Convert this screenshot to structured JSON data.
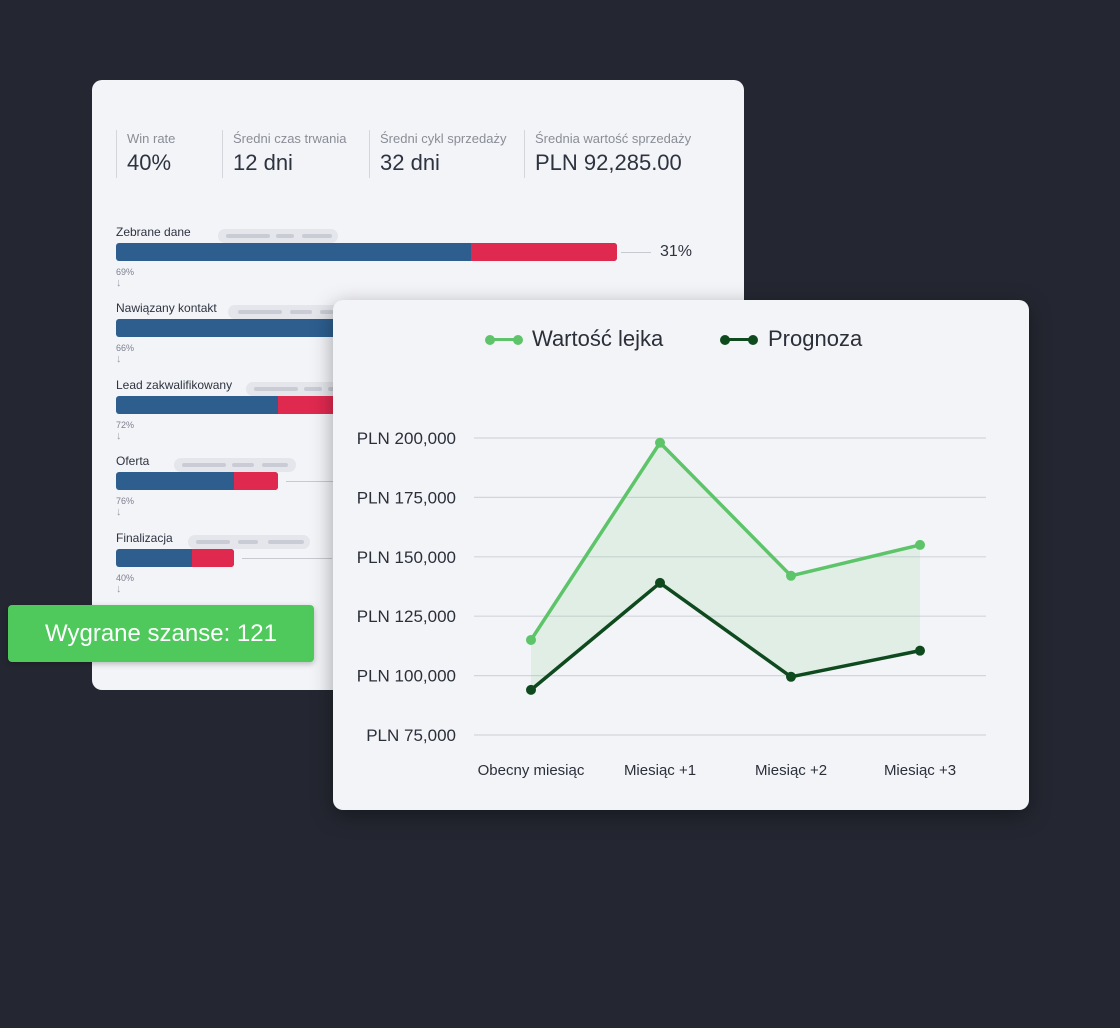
{
  "kpis": [
    {
      "label": "Win rate",
      "value": "40%"
    },
    {
      "label": "Średni czas trwania",
      "value": "12 dni"
    },
    {
      "label": "Średni cykl sprzedaży",
      "value": "32 dni"
    },
    {
      "label": "Średnia wartość sprzedaży",
      "value": "PLN 92,285.00"
    }
  ],
  "funnel": {
    "stages": [
      {
        "name": "Zebrane dane",
        "conversion": "69%"
      },
      {
        "name": "Nawiązany kontakt",
        "conversion": "66%"
      },
      {
        "name": "Lead zakwalifikowany",
        "conversion": "72%"
      },
      {
        "name": "Oferta",
        "conversion": "76%"
      },
      {
        "name": "Finalizacja",
        "conversion": "40%"
      }
    ],
    "final_conversion": "31%"
  },
  "badge": {
    "text": "Wygrane szanse: 121"
  },
  "colors": {
    "background": "#242731",
    "card": "#f3f4f8",
    "bar_blue": "#2d5e8e",
    "bar_red": "#e0294f",
    "badge_green": "#4fc95c",
    "series_light": "#5ec46a",
    "series_dark": "#0f4a1f"
  },
  "chart_data": {
    "type": "line",
    "categories": [
      "Obecny miesiąc",
      "Miesiąc +1",
      "Miesiąc +2",
      "Miesiąc +3"
    ],
    "series": [
      {
        "name": "Wartość lejka",
        "values": [
          115000,
          198000,
          142000,
          155000
        ],
        "color": "#5ec46a"
      },
      {
        "name": "Prognoza",
        "values": [
          94000,
          139000,
          99500,
          110500
        ],
        "color": "#0f4a1f"
      }
    ],
    "yticks": [
      "PLN 75,000",
      "PLN 100,000",
      "PLN 125,000",
      "PLN 150,000",
      "PLN 175,000",
      "PLN 200,000"
    ],
    "ylim": [
      75000,
      200000
    ],
    "ytick_step": 25000,
    "grid": true,
    "legend_position": "top-center",
    "title": "",
    "xlabel": "",
    "ylabel": ""
  }
}
